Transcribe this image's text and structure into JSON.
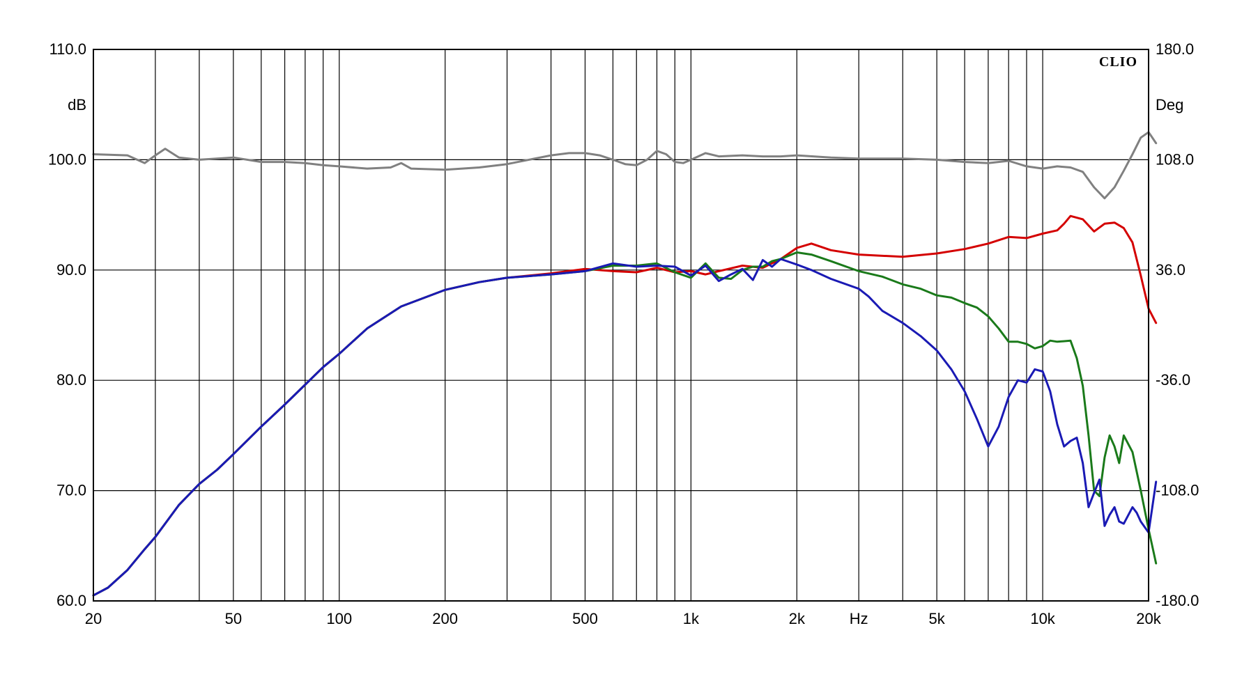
{
  "chart_data": {
    "type": "line",
    "brand_label": "CLIO",
    "x_unit_label": "Hz",
    "y_left_unit": "dB",
    "y_right_unit": "Deg",
    "xscale": "log",
    "xlim": [
      20,
      20000
    ],
    "ylim_left": [
      60,
      110
    ],
    "ylim_right": [
      -180,
      180
    ],
    "grid": true,
    "x_gridlines": [
      20,
      30,
      40,
      50,
      60,
      70,
      80,
      90,
      100,
      200,
      300,
      400,
      500,
      600,
      700,
      800,
      900,
      1000,
      2000,
      3000,
      4000,
      5000,
      6000,
      7000,
      8000,
      9000,
      10000,
      20000
    ],
    "x_tick_labels": [
      {
        "value": 20,
        "text": "20"
      },
      {
        "value": 50,
        "text": "50"
      },
      {
        "value": 100,
        "text": "100"
      },
      {
        "value": 200,
        "text": "200"
      },
      {
        "value": 500,
        "text": "500"
      },
      {
        "value": 1000,
        "text": "1k"
      },
      {
        "value": 2000,
        "text": "2k"
      },
      {
        "value": 5000,
        "text": "5k"
      },
      {
        "value": 10000,
        "text": "10k"
      },
      {
        "value": 20000,
        "text": "20k"
      }
    ],
    "y_left_ticks": [
      {
        "value": 60,
        "text": "60.0"
      },
      {
        "value": 70,
        "text": "70.0"
      },
      {
        "value": 80,
        "text": "80.0"
      },
      {
        "value": 90,
        "text": "90.0"
      },
      {
        "value": 100,
        "text": "100.0"
      },
      {
        "value": 110,
        "text": "110.0"
      }
    ],
    "y_right_ticks": [
      {
        "value": -180,
        "text": "-180.0"
      },
      {
        "value": -108,
        "text": "-108.0"
      },
      {
        "value": -36,
        "text": "-36.0"
      },
      {
        "value": 36,
        "text": "36.0"
      },
      {
        "value": 108,
        "text": "108.0"
      },
      {
        "value": 180,
        "text": "180.0"
      }
    ],
    "series": [
      {
        "color": "#808080",
        "axis": "left",
        "x": [
          20,
          25,
          28,
          30,
          32,
          35,
          40,
          50,
          60,
          70,
          80,
          90,
          100,
          120,
          140,
          150,
          160,
          200,
          250,
          300,
          400,
          450,
          500,
          550,
          600,
          650,
          700,
          750,
          800,
          850,
          900,
          950,
          1000,
          1100,
          1200,
          1400,
          1600,
          1800,
          2000,
          2500,
          3000,
          4000,
          5000,
          6000,
          7000,
          8000,
          9000,
          10000,
          11000,
          12000,
          13000,
          14000,
          15000,
          16000,
          17000,
          18000,
          19000,
          20000,
          21000
        ],
        "y": [
          100.5,
          100.4,
          99.7,
          100.4,
          101.0,
          100.2,
          100.0,
          100.2,
          99.8,
          99.8,
          99.7,
          99.5,
          99.4,
          99.2,
          99.3,
          99.7,
          99.2,
          99.1,
          99.3,
          99.6,
          100.4,
          100.6,
          100.6,
          100.4,
          100.0,
          99.6,
          99.5,
          100.0,
          100.8,
          100.5,
          99.8,
          99.7,
          100.0,
          100.6,
          100.3,
          100.4,
          100.3,
          100.3,
          100.4,
          100.2,
          100.1,
          100.1,
          100.0,
          99.8,
          99.7,
          99.9,
          99.4,
          99.2,
          99.4,
          99.3,
          98.9,
          97.5,
          96.5,
          97.5,
          99.0,
          100.5,
          102.0,
          102.5,
          101.5
        ]
      },
      {
        "color": "#d40000",
        "axis": "left",
        "x": [
          20,
          22,
          25,
          28,
          30,
          35,
          40,
          45,
          50,
          60,
          70,
          80,
          90,
          100,
          120,
          150,
          200,
          250,
          300,
          400,
          500,
          600,
          700,
          800,
          900,
          1000,
          1100,
          1200,
          1400,
          1600,
          1800,
          2000,
          2200,
          2500,
          3000,
          4000,
          5000,
          6000,
          7000,
          8000,
          9000,
          10000,
          11000,
          11500,
          12000,
          13000,
          14000,
          15000,
          16000,
          17000,
          18000,
          19000,
          20000,
          21000
        ],
        "y": [
          60.5,
          61.2,
          62.8,
          64.7,
          65.8,
          68.7,
          70.6,
          71.9,
          73.3,
          75.8,
          77.8,
          79.6,
          81.2,
          82.4,
          84.7,
          86.7,
          88.2,
          88.9,
          89.3,
          89.7,
          90.1,
          89.9,
          89.8,
          90.2,
          89.8,
          89.9,
          89.6,
          89.9,
          90.4,
          90.2,
          91.0,
          92.0,
          92.4,
          91.8,
          91.4,
          91.2,
          91.5,
          91.9,
          92.4,
          93.0,
          92.9,
          93.3,
          93.6,
          94.2,
          94.9,
          94.6,
          93.5,
          94.2,
          94.3,
          93.8,
          92.5,
          89.5,
          86.5,
          85.2
        ]
      },
      {
        "color": "#1a7a1a",
        "axis": "left",
        "x": [
          20,
          22,
          25,
          28,
          30,
          35,
          40,
          45,
          50,
          60,
          70,
          80,
          90,
          100,
          120,
          150,
          200,
          250,
          300,
          400,
          500,
          600,
          700,
          800,
          900,
          1000,
          1100,
          1200,
          1300,
          1400,
          1500,
          1600,
          1700,
          1800,
          2000,
          2200,
          2500,
          3000,
          3500,
          4000,
          4500,
          5000,
          5500,
          6000,
          6500,
          7000,
          7500,
          8000,
          8500,
          9000,
          9500,
          10000,
          10500,
          11000,
          12000,
          12500,
          13000,
          13500,
          14000,
          14500,
          15000,
          15500,
          16000,
          16500,
          17000,
          18000,
          19000,
          20000,
          21000
        ],
        "y": [
          60.5,
          61.2,
          62.8,
          64.7,
          65.8,
          68.7,
          70.6,
          71.9,
          73.3,
          75.8,
          77.8,
          79.6,
          81.2,
          82.4,
          84.7,
          86.7,
          88.2,
          88.9,
          89.3,
          89.6,
          89.9,
          90.4,
          90.4,
          90.6,
          89.8,
          89.3,
          90.6,
          89.3,
          89.2,
          90.0,
          90.3,
          90.3,
          90.8,
          91.0,
          91.6,
          91.4,
          90.8,
          89.9,
          89.4,
          88.7,
          88.3,
          87.7,
          87.5,
          87.0,
          86.6,
          85.8,
          84.7,
          83.5,
          83.5,
          83.3,
          82.9,
          83.1,
          83.6,
          83.5,
          83.6,
          82.0,
          79.5,
          75.0,
          70.0,
          69.5,
          73.0,
          75.0,
          74.0,
          72.5,
          75.0,
          73.5,
          70.0,
          66.5,
          63.4
        ]
      },
      {
        "color": "#1a1ab4",
        "axis": "left",
        "x": [
          20,
          22,
          25,
          28,
          30,
          35,
          40,
          45,
          50,
          60,
          70,
          80,
          90,
          100,
          120,
          150,
          200,
          250,
          300,
          400,
          500,
          600,
          700,
          800,
          900,
          1000,
          1100,
          1200,
          1300,
          1400,
          1500,
          1600,
          1700,
          1800,
          2000,
          2200,
          2500,
          3000,
          3200,
          3500,
          4000,
          4500,
          5000,
          5500,
          6000,
          6500,
          7000,
          7500,
          8000,
          8500,
          9000,
          9500,
          10000,
          10500,
          11000,
          11500,
          12000,
          12500,
          13000,
          13500,
          14000,
          14500,
          15000,
          15500,
          16000,
          16500,
          17000,
          18000,
          18500,
          19000,
          20000,
          21000
        ],
        "y": [
          60.5,
          61.2,
          62.8,
          64.7,
          65.8,
          68.7,
          70.6,
          71.9,
          73.3,
          75.8,
          77.8,
          79.6,
          81.2,
          82.4,
          84.7,
          86.7,
          88.2,
          88.9,
          89.3,
          89.6,
          89.9,
          90.6,
          90.3,
          90.4,
          90.3,
          89.5,
          90.4,
          89.0,
          89.6,
          90.1,
          89.1,
          90.9,
          90.3,
          91.0,
          90.5,
          90.0,
          89.2,
          88.3,
          87.6,
          86.3,
          85.2,
          84.0,
          82.7,
          81.0,
          79.0,
          76.5,
          74.0,
          75.8,
          78.5,
          80.0,
          79.8,
          81.0,
          80.8,
          79.0,
          76.0,
          74.0,
          74.5,
          74.8,
          72.5,
          68.5,
          69.8,
          71.0,
          66.8,
          67.8,
          68.5,
          67.2,
          67.0,
          68.5,
          68.0,
          67.2,
          66.2,
          70.8
        ]
      }
    ]
  }
}
